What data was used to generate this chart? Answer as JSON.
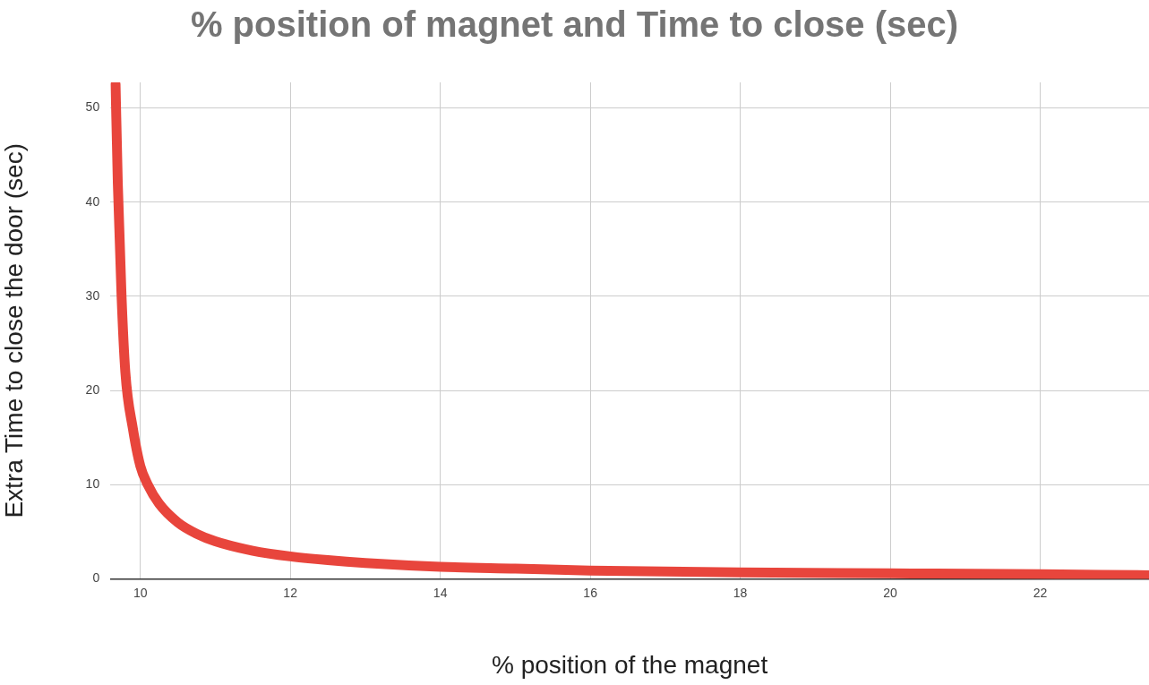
{
  "chart_data": {
    "type": "line",
    "title": "% position of magnet and Time to close (sec)",
    "xlabel": "% position of the magnet",
    "ylabel": "Extra Time to close the door (sec)",
    "x": [
      9.67,
      9.7,
      9.75,
      9.8,
      9.9,
      10,
      10.1,
      10.25,
      10.5,
      10.75,
      11,
      11.5,
      12,
      12.5,
      13,
      14,
      15,
      16,
      18,
      20,
      22,
      23.45
    ],
    "series": [
      {
        "color": "#e8453c",
        "values": [
          52.5,
          42,
          30,
          22,
          16,
          12,
          10,
          8,
          6,
          4.8,
          4,
          3,
          2.4,
          2,
          1.7,
          1.3,
          1.1,
          0.9,
          0.7,
          0.6,
          0.5,
          0.4
        ]
      }
    ],
    "xlim": [
      9.6,
      23.45
    ],
    "xticks": [
      10,
      12,
      14,
      16,
      18,
      20,
      22
    ],
    "ylim": [
      0,
      52.7
    ],
    "yticks": [
      0,
      10,
      20,
      30,
      40,
      50
    ],
    "grid": true,
    "legend": false,
    "marker": "none",
    "line_style": "solid"
  }
}
